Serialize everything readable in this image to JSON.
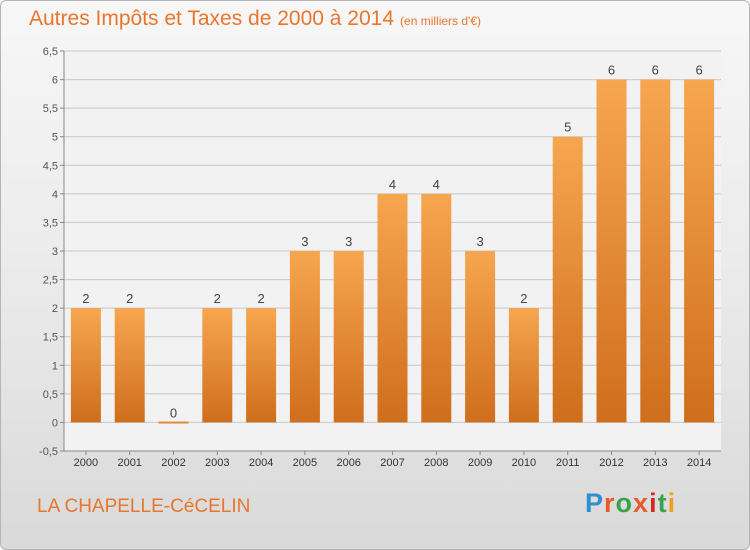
{
  "header": {
    "title": "Autres Impôts et Taxes de 2000 à 2014",
    "unit": "(en milliers d'€)"
  },
  "footer": {
    "commune": "LA CHAPELLE-CéCELIN",
    "brand": "Proxiti"
  },
  "colors": {
    "title": "#e8762d",
    "bar_light": "#f7a650",
    "bar_dark": "#cf6e1c",
    "grid": "#c8c8c8",
    "brand_letters": [
      "#2f8fd0",
      "#e85a2a",
      "#3aa24a",
      "#e85a2a",
      "#d6262a",
      "#3aa24a",
      "#f0a020"
    ]
  },
  "chart_data": {
    "type": "bar",
    "title": "Autres Impôts et Taxes de 2000 à 2014",
    "subtitle": "(en milliers d'€)",
    "xlabel": "",
    "ylabel": "",
    "categories": [
      "2000",
      "2001",
      "2002",
      "2003",
      "2004",
      "2005",
      "2006",
      "2007",
      "2008",
      "2009",
      "2010",
      "2011",
      "2012",
      "2013",
      "2014"
    ],
    "values": [
      2,
      2,
      0,
      2,
      2,
      3,
      3,
      4,
      4,
      3,
      2,
      5,
      6,
      6,
      6
    ],
    "data_labels": [
      "2",
      "2",
      "0",
      "2",
      "2",
      "3",
      "3",
      "4",
      "4",
      "3",
      "2",
      "5",
      "6",
      "6",
      "6"
    ],
    "ylim": [
      -0.5,
      6.5
    ],
    "yticks": [
      -0.5,
      0,
      0.5,
      1,
      1.5,
      2,
      2.5,
      3,
      3.5,
      4,
      4.5,
      5,
      5.5,
      6,
      6.5
    ],
    "ytick_labels": [
      "-0,5",
      "0",
      "0,5",
      "1",
      "1,5",
      "2",
      "2,5",
      "3",
      "3,5",
      "4",
      "4,5",
      "5",
      "5,5",
      "6",
      "6,5"
    ],
    "grid": true,
    "legend": "none"
  }
}
